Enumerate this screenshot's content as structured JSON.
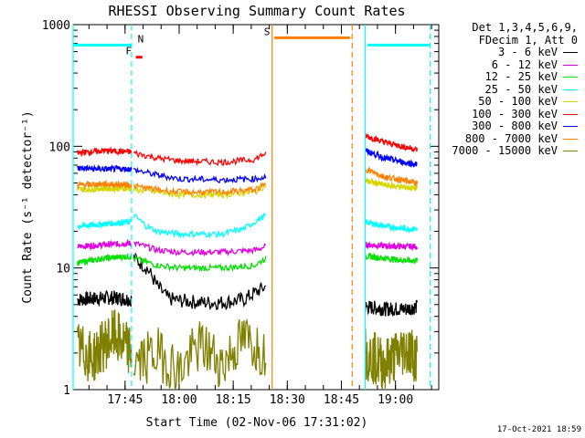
{
  "chart_data": {
    "type": "line",
    "title": "RHESSI Observing Summary Count Rates",
    "xlabel": "Start Time (02-Nov-06 17:31:02)",
    "ylabel": "Count Rate (s⁻¹ detector⁻¹)",
    "y_scale": "log",
    "ylim": [
      1,
      1000
    ],
    "xlim_minutes": [
      17.51,
      19.2
    ],
    "y_ticks": [
      "1",
      "10",
      "100",
      "1000"
    ],
    "x_ticks": [
      "17:45",
      "18:00",
      "18:15",
      "18:30",
      "18:45",
      "19:00"
    ],
    "legend_header": [
      "Det 1,3,4,5,6,9,",
      "FDecim 1, Att 0"
    ],
    "series": [
      {
        "name": "3 - 6 keV",
        "color": "#000000",
        "segments": [
          {
            "x": [
              17.53,
              17.6,
              17.7,
              17.78
            ],
            "y": [
              5.5,
              5.6,
              5.7,
              5.5
            ]
          },
          {
            "x": [
              17.79,
              17.85,
              17.9,
              17.95,
              18.0,
              18.1,
              18.2,
              18.3,
              18.4
            ],
            "y": [
              12,
              10,
              7,
              5.6,
              5.4,
              5.2,
              5.2,
              5.5,
              7
            ]
          },
          {
            "x": [
              18.86,
              18.95,
              19.05,
              19.1
            ],
            "y": [
              4.8,
              4.6,
              4.6,
              4.8
            ]
          }
        ]
      },
      {
        "name": "6 - 12 keV",
        "color": "#e100e1",
        "segments": [
          {
            "x": [
              17.53,
              17.65,
              17.78
            ],
            "y": [
              15,
              15.5,
              16
            ]
          },
          {
            "x": [
              17.79,
              17.9,
              18.0,
              18.2,
              18.35,
              18.4
            ],
            "y": [
              16,
              14,
              13.5,
              13.5,
              14,
              15
            ]
          },
          {
            "x": [
              18.86,
              18.95,
              19.05,
              19.1
            ],
            "y": [
              15.5,
              15.2,
              15,
              15
            ]
          }
        ]
      },
      {
        "name": "12 - 25 keV",
        "color": "#00e100",
        "segments": [
          {
            "x": [
              17.53,
              17.65,
              17.78
            ],
            "y": [
              11,
              12,
              12.5
            ]
          },
          {
            "x": [
              17.79,
              17.9,
              18.0,
              18.2,
              18.35,
              18.4
            ],
            "y": [
              12,
              10.5,
              10,
              10,
              10.5,
              12
            ]
          },
          {
            "x": [
              18.86,
              18.95,
              19.05,
              19.1
            ],
            "y": [
              12.5,
              12,
              11.5,
              11.5
            ]
          }
        ]
      },
      {
        "name": "25 - 50 keV",
        "color": "#00ffff",
        "segments": [
          {
            "x": [
              17.53,
              17.65,
              17.78
            ],
            "y": [
              22,
              23,
              24
            ]
          },
          {
            "x": [
              17.79,
              17.85,
              17.9,
              18.0,
              18.2,
              18.3,
              18.4
            ],
            "y": [
              27,
              22,
              20,
              19,
              19,
              21,
              27
            ]
          },
          {
            "x": [
              18.86,
              18.95,
              19.05,
              19.1
            ],
            "y": [
              24,
              22,
              21,
              21
            ]
          }
        ]
      },
      {
        "name": "50 - 100 keV",
        "color": "#d7d700",
        "segments": [
          {
            "x": [
              17.53,
              17.65,
              17.78
            ],
            "y": [
              44,
              45,
              45
            ]
          },
          {
            "x": [
              17.79,
              17.9,
              18.0,
              18.2,
              18.35,
              18.4
            ],
            "y": [
              44,
              42,
              40,
              40,
              42,
              48
            ]
          },
          {
            "x": [
              18.86,
              18.95,
              19.05,
              19.1
            ],
            "y": [
              52,
              48,
              46,
              45
            ]
          }
        ]
      },
      {
        "name": "100 - 300 keV",
        "color": "#ff0000",
        "segments": [
          {
            "x": [
              17.53,
              17.65,
              17.78
            ],
            "y": [
              88,
              92,
              90
            ]
          },
          {
            "x": [
              17.79,
              17.9,
              18.0,
              18.2,
              18.35,
              18.4
            ],
            "y": [
              88,
              80,
              76,
              74,
              78,
              88
            ]
          },
          {
            "x": [
              18.86,
              18.95,
              19.05,
              19.1
            ],
            "y": [
              122,
              108,
              98,
              94
            ]
          }
        ]
      },
      {
        "name": "300 - 800 keV",
        "color": "#0000ff",
        "segments": [
          {
            "x": [
              17.53,
              17.65,
              17.78
            ],
            "y": [
              66,
              65,
              65
            ]
          },
          {
            "x": [
              17.79,
              17.9,
              18.0,
              18.2,
              18.35,
              18.4
            ],
            "y": [
              64,
              58,
              54,
              53,
              54,
              56
            ]
          },
          {
            "x": [
              18.86,
              18.95,
              19.05,
              19.1
            ],
            "y": [
              92,
              80,
              73,
              71
            ]
          }
        ]
      },
      {
        "name": "800 - 7000 keV",
        "color": "#ff8000",
        "segments": [
          {
            "x": [
              17.53,
              17.65,
              17.78
            ],
            "y": [
              48,
              49,
              48
            ]
          },
          {
            "x": [
              17.79,
              17.9,
              18.0,
              18.2,
              18.35,
              18.4
            ],
            "y": [
              47,
              44,
              42,
              42,
              44,
              48
            ]
          },
          {
            "x": [
              18.86,
              18.95,
              19.05,
              19.1
            ],
            "y": [
              65,
              56,
              52,
              50
            ]
          }
        ]
      },
      {
        "name": "7000 - 15000 keV",
        "color": "#7f7f00",
        "segments": [
          {
            "x": [
              17.53,
              17.6,
              17.7,
              17.78
            ],
            "y": [
              2.2,
              1.8,
              2.8,
              2.0
            ]
          },
          {
            "x": [
              17.79,
              17.9,
              18.0,
              18.1,
              18.2,
              18.3,
              18.4
            ],
            "y": [
              1.6,
              2.0,
              1.4,
              2.3,
              1.6,
              2.6,
              2.0
            ]
          },
          {
            "x": [
              18.86,
              18.95,
              19.05,
              19.1
            ],
            "y": [
              2.0,
              1.6,
              2.2,
              1.8
            ]
          }
        ]
      }
    ],
    "flags": [
      {
        "label": "N",
        "color": "#00ffff",
        "segments": [
          [
            17.51,
            17.78
          ],
          [
            18.87,
            19.16
          ]
        ],
        "y": 680
      },
      {
        "label": "F",
        "color": "#ff0000",
        "segments": [
          [
            17.8,
            17.83
          ]
        ],
        "y": 540
      },
      {
        "label": "S",
        "color": "#ff8000",
        "segments": [
          [
            18.44,
            18.79
          ]
        ],
        "y": 780
      }
    ],
    "vertical_lines": [
      {
        "x": 17.51,
        "color": "#00ffff",
        "style": "solid"
      },
      {
        "x": 17.78,
        "color": "#00ffff",
        "style": "dashed"
      },
      {
        "x": 18.43,
        "color": "#ff8000",
        "style": "solid"
      },
      {
        "x": 18.8,
        "color": "#ff8000",
        "style": "dashed"
      },
      {
        "x": 18.86,
        "color": "#00ffff",
        "style": "solid"
      },
      {
        "x": 19.16,
        "color": "#00ffff",
        "style": "dashed"
      }
    ]
  },
  "footer": {
    "generated": "17-Oct-2021 18:59"
  }
}
